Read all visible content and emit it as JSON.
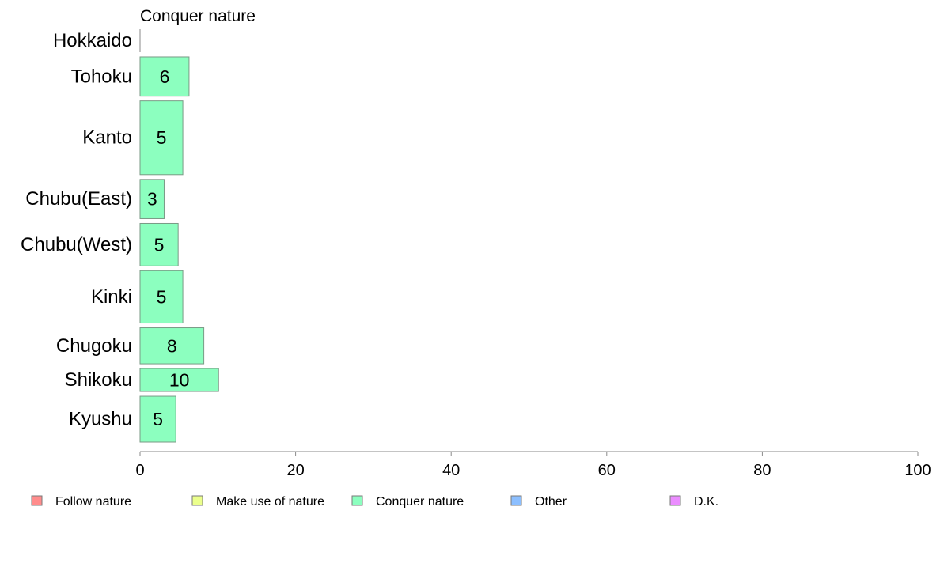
{
  "chart_data": {
    "type": "bar",
    "orientation": "horizontal",
    "title": "Conquer nature",
    "categories": [
      "Hokkaido",
      "Tohoku",
      "Kanto",
      "Chubu(East)",
      "Chubu(West)",
      "Kinki",
      "Chugoku",
      "Shikoku",
      "Kyushu"
    ],
    "series": [
      {
        "name": "Conquer nature",
        "values": [
          0,
          6.3,
          5.5,
          3.1,
          4.9,
          5.5,
          8.2,
          10.1,
          4.6
        ],
        "labels": [
          "",
          "6",
          "5",
          "3",
          "5",
          "5",
          "8",
          "10",
          "5"
        ],
        "color": "#8cffbf"
      }
    ],
    "category_weights": [
      0.7,
      1.2,
      2.25,
      1.2,
      1.3,
      1.6,
      1.1,
      0.7,
      1.4
    ],
    "xlim": [
      0,
      100
    ],
    "xticks": [
      0,
      20,
      40,
      60,
      80,
      100
    ],
    "grid": false,
    "legend": {
      "placement": "bottom",
      "items": [
        {
          "label": "Follow nature",
          "color": "#ff8c8c"
        },
        {
          "label": "Make use of nature",
          "color": "#ebff8c"
        },
        {
          "label": "Conquer nature",
          "color": "#8cffbf"
        },
        {
          "label": "Other",
          "color": "#8cbfff"
        },
        {
          "label": "D.K.",
          "color": "#eb8cff"
        }
      ]
    }
  }
}
